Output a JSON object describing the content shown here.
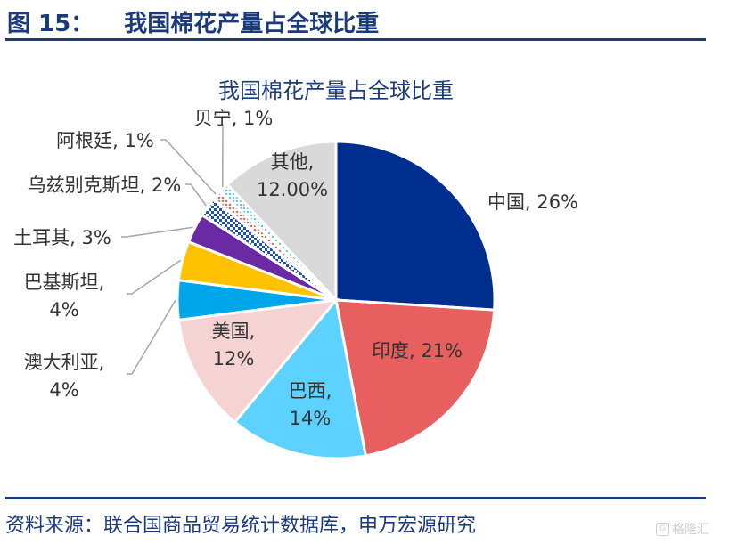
{
  "figure": {
    "number": "图 15：",
    "title": "我国棉花产量占全球比重",
    "source": "资料来源：联合国商品贸易统计数据库，申万宏源研究",
    "watermark": "格隆汇"
  },
  "chart_data": {
    "type": "pie",
    "title": "我国棉花产量占全球比重",
    "slices": [
      {
        "name": "中国",
        "value": 26,
        "label": "中国, 26%",
        "color": "#002e8f"
      },
      {
        "name": "印度",
        "value": 21,
        "label": "印度, 21%",
        "color": "#e85f5f"
      },
      {
        "name": "巴西",
        "value": 14,
        "label": "巴西,\n14%",
        "color": "#5dd1ff"
      },
      {
        "name": "美国",
        "value": 12,
        "label": "美国,\n12%",
        "color": "#f6d3d3"
      },
      {
        "name": "澳大利亚",
        "value": 4,
        "label": "澳大利亚,\n4%",
        "color": "#00a6ea"
      },
      {
        "name": "巴基斯坦",
        "value": 4,
        "label": "巴基斯坦,\n4%",
        "color": "#ffc200"
      },
      {
        "name": "土耳其",
        "value": 3,
        "label": "土耳其, 3%",
        "color": "#6a2aa3"
      },
      {
        "name": "乌兹别克斯坦",
        "value": 2,
        "label": "乌兹别克斯坦, 2%",
        "color": "#1f4fb3",
        "pattern": "checker"
      },
      {
        "name": "阿根廷",
        "value": 1,
        "label": "阿根廷, 1%",
        "color": "#e85f5f",
        "pattern": "dots"
      },
      {
        "name": "贝宁",
        "value": 1,
        "label": "贝宁, 1%",
        "color": "#5dc8f2",
        "pattern": "dots"
      },
      {
        "name": "其他",
        "value": 12,
        "label": "其他,\n12.00%",
        "color": "#d9d9d9"
      }
    ]
  }
}
